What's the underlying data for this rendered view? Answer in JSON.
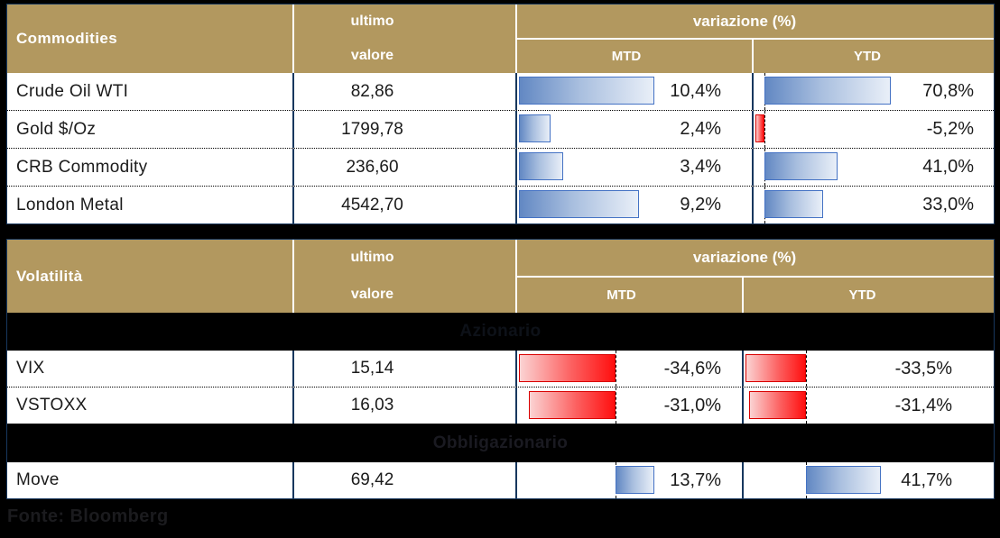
{
  "columns": {
    "ultimo": "ultimo",
    "valore": "valore",
    "variazione": "variazione (%)",
    "mtd": "MTD",
    "ytd": "YTD"
  },
  "tables": [
    {
      "title": "Commodities",
      "rows": [
        {
          "type": "data",
          "name": "Crude Oil WTI",
          "value": "82,86",
          "mtd": 10.4,
          "mtd_display": "10,4%",
          "ytd": 70.8,
          "ytd_display": "70,8%"
        },
        {
          "type": "data",
          "name": "Gold $/Oz",
          "value": "1799,78",
          "mtd": 2.4,
          "mtd_display": "2,4%",
          "ytd": -5.2,
          "ytd_display": "-5,2%"
        },
        {
          "type": "data",
          "name": "CRB Commodity",
          "value": "236,60",
          "mtd": 3.4,
          "mtd_display": "3,4%",
          "ytd": 41.0,
          "ytd_display": "41,0%"
        },
        {
          "type": "data",
          "name": "London Metal",
          "value": "4542,70",
          "mtd": 9.2,
          "mtd_display": "9,2%",
          "ytd": 33.0,
          "ytd_display": "33,0%"
        }
      ]
    },
    {
      "title": "Volatilità",
      "rows": [
        {
          "type": "section",
          "label": "Azionario"
        },
        {
          "type": "data",
          "name": "VIX",
          "value": "15,14",
          "mtd": -34.6,
          "mtd_display": "-34,6%",
          "ytd": -33.5,
          "ytd_display": "-33,5%"
        },
        {
          "type": "data",
          "name": "VSTOXX",
          "value": "16,03",
          "mtd": -31.0,
          "mtd_display": "-31,0%",
          "ytd": -31.4,
          "ytd_display": "-31,4%"
        },
        {
          "type": "section",
          "label": "Obbligazionario"
        },
        {
          "type": "data",
          "name": "Move",
          "value": "69,42",
          "mtd": 13.7,
          "mtd_display": "13,7%",
          "ytd": 41.7,
          "ytd_display": "41,7%"
        }
      ]
    }
  ],
  "footer": {
    "source": "Fonte: Bloomberg"
  },
  "colors": {
    "header_bg": "#B2985F",
    "grid_line": "#17375E",
    "positive_bar_border": "#4472C4",
    "negative_bar_border": "#D90000"
  },
  "chart_data": [
    {
      "type": "table",
      "title": "Commodities",
      "columns": [
        "ultimo valore",
        "variazione % MTD",
        "variazione % YTD"
      ],
      "rows": [
        {
          "name": "Crude Oil WTI",
          "ultimo_valore": 82.86,
          "mtd_pct": 10.4,
          "ytd_pct": 70.8
        },
        {
          "name": "Gold $/Oz",
          "ultimo_valore": 1799.78,
          "mtd_pct": 2.4,
          "ytd_pct": -5.2
        },
        {
          "name": "CRB Commodity",
          "ultimo_valore": 236.6,
          "mtd_pct": 3.4,
          "ytd_pct": 41.0
        },
        {
          "name": "London Metal",
          "ultimo_valore": 4542.7,
          "mtd_pct": 9.2,
          "ytd_pct": 33.0
        }
      ],
      "bar_style": "data-bars, blue = positive, red = negative"
    },
    {
      "type": "table",
      "title": "Volatilità",
      "columns": [
        "ultimo valore",
        "variazione % MTD",
        "variazione % YTD"
      ],
      "sections": [
        {
          "label": "Azionario",
          "rows": [
            {
              "name": "VIX",
              "ultimo_valore": 15.14,
              "mtd_pct": -34.6,
              "ytd_pct": -33.5
            },
            {
              "name": "VSTOXX",
              "ultimo_valore": 16.03,
              "mtd_pct": -31.0,
              "ytd_pct": -31.4
            }
          ]
        },
        {
          "label": "Obbligazionario",
          "rows": [
            {
              "name": "Move",
              "ultimo_valore": 69.42,
              "mtd_pct": 13.7,
              "ytd_pct": 41.7
            }
          ]
        }
      ],
      "bar_style": "data-bars, blue = positive, red = negative"
    }
  ]
}
